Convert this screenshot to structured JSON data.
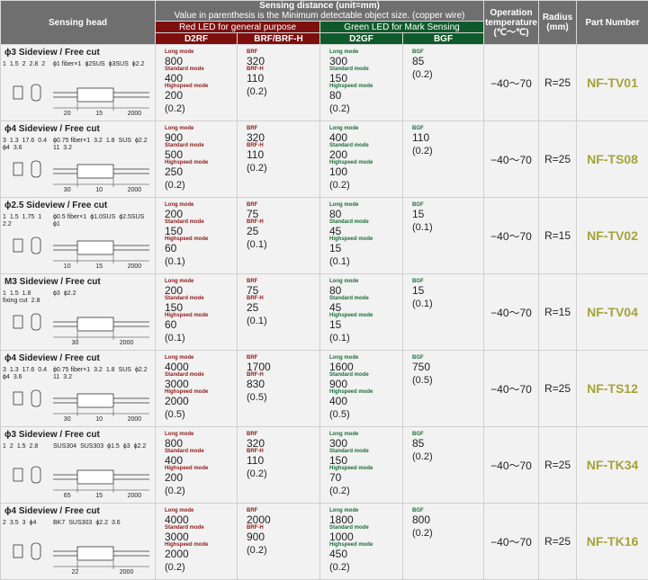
{
  "header": {
    "sensing_head": "Sensing head",
    "sensing_distance": "Sensing distance (unit=mm)",
    "sensing_note": "Value in parenthesis is the Minimum detectable object size. (copper wire)",
    "red_led": "Red LED for general purpose",
    "green_led": "Green LED for Mark Sensing",
    "cols": [
      "D2RF",
      "BRF/BRF-H",
      "D2GF",
      "BGF"
    ],
    "op_temp": "Operation temperature (℃～℃)",
    "radius": "Radius (mm)",
    "part_number": "Part Number"
  },
  "labels": {
    "long": "Long mode",
    "standard": "Standard mode",
    "highspeed": "Highspeed mode",
    "brf": "BRF",
    "brfh": "BRF-H",
    "bgf": "BGF"
  },
  "colors": {
    "red_header": "#7d0f0f",
    "green_header": "#0f5a2b",
    "part_number": "#a3a339"
  },
  "rows": [
    {
      "title": "ϕ3 Sideview / Free cut",
      "end_view": [
        "1",
        "1.5",
        "2",
        "2.8",
        "2"
      ],
      "callouts": [
        "ϕ1 fiber×1",
        "ϕ2SUS",
        "ϕ3SUS",
        "ϕ2.2"
      ],
      "lengths": [
        "20",
        "15",
        "2000"
      ],
      "d2rf": [
        "800",
        "400",
        "200",
        "(0.2)"
      ],
      "brf": [
        "320",
        "110",
        "(0.2)"
      ],
      "d2gf": [
        "300",
        "150",
        "80",
        "(0.2)"
      ],
      "bgf": [
        "85",
        "(0.2)"
      ],
      "temp": "−40～70",
      "radius": "R=25",
      "part": "NF-TV01"
    },
    {
      "title": "ϕ4 Sideview / Free cut",
      "end_view": [
        "3",
        "1.3",
        "17.6",
        "0.4",
        "ϕ4",
        "3.6"
      ],
      "callouts": [
        "ϕ0.75 fiber×1",
        "3.2",
        "1.8",
        "SUS",
        "ϕ2.2",
        "11",
        "3.2"
      ],
      "lengths": [
        "30",
        "10",
        "2000"
      ],
      "d2rf": [
        "900",
        "500",
        "250",
        "(0.2)"
      ],
      "brf": [
        "320",
        "110",
        "(0.2)"
      ],
      "d2gf": [
        "400",
        "200",
        "100",
        "(0.2)"
      ],
      "bgf": [
        "110",
        "(0.2)"
      ],
      "temp": "−40～70",
      "radius": "R=25",
      "part": "NF-TS08"
    },
    {
      "title": "ϕ2.5 Sideview / Free cut",
      "end_view": [
        "1",
        "1.5",
        "1.75",
        "1",
        "2.2"
      ],
      "callouts": [
        "ϕ0.5 fiber×1",
        "ϕ1.0SUS",
        "ϕ2.5SUS",
        "ϕ1"
      ],
      "lengths": [
        "10",
        "15",
        "2000"
      ],
      "d2rf": [
        "200",
        "150",
        "60",
        "(0.1)"
      ],
      "brf": [
        "75",
        "25",
        "(0.1)"
      ],
      "d2gf": [
        "80",
        "45",
        "15",
        "(0.1)"
      ],
      "bgf": [
        "15",
        "(0.1)"
      ],
      "temp": "−40～70",
      "radius": "R=15",
      "part": "NF-TV02"
    },
    {
      "title": "M3 Sideview / Free cut",
      "end_view": [
        "1",
        "1.5",
        "1.8",
        "fixing cut",
        "2.8"
      ],
      "callouts": [
        "ϕ3",
        "ϕ2.2"
      ],
      "lengths": [
        "30",
        "2000"
      ],
      "d2rf": [
        "200",
        "150",
        "60",
        "(0.1)"
      ],
      "brf": [
        "75",
        "25",
        "(0.1)"
      ],
      "d2gf": [
        "80",
        "45",
        "15",
        "(0.1)"
      ],
      "bgf": [
        "15",
        "(0.1)"
      ],
      "temp": "−40～70",
      "radius": "R=15",
      "part": "NF-TV04"
    },
    {
      "title": "ϕ4 Sideview / Free cut",
      "end_view": [
        "3",
        "1.3",
        "17.6",
        "0.4",
        "ϕ4",
        "3.6"
      ],
      "callouts": [
        "ϕ0.75 fiber×1",
        "3.2",
        "1.8",
        "SUS",
        "ϕ2.2",
        "11",
        "3.2"
      ],
      "lengths": [
        "30",
        "10",
        "2000"
      ],
      "d2rf": [
        "4000",
        "3000",
        "2000",
        "(0.5)"
      ],
      "brf": [
        "1700",
        "830",
        "(0.5)"
      ],
      "d2gf": [
        "1600",
        "900",
        "400",
        "(0.5)"
      ],
      "bgf": [
        "750",
        "(0.5)"
      ],
      "temp": "−40～70",
      "radius": "R=25",
      "part": "NF-TS12"
    },
    {
      "title": "ϕ3 Sideview / Free cut",
      "end_view": [
        "1",
        "2",
        "1.5",
        "2.8"
      ],
      "callouts": [
        "SUS304",
        "SUS303",
        "ϕ1.5",
        "ϕ3",
        "ϕ2.2"
      ],
      "lengths": [
        "65",
        "15",
        "2000"
      ],
      "d2rf": [
        "800",
        "400",
        "200",
        "(0.2)"
      ],
      "brf": [
        "320",
        "110",
        "(0.2)"
      ],
      "d2gf": [
        "300",
        "150",
        "70",
        "(0.2)"
      ],
      "bgf": [
        "85",
        "(0.2)"
      ],
      "temp": "−40～70",
      "radius": "R=25",
      "part": "NF-TK34"
    },
    {
      "title": "ϕ4 Sideview / Free cut",
      "end_view": [
        "2",
        "3.5",
        "3",
        "ϕ4"
      ],
      "callouts": [
        "BK7",
        "SUS303",
        "ϕ2.2",
        "3.6"
      ],
      "lengths": [
        "22",
        "2000"
      ],
      "d2rf": [
        "4000",
        "3000",
        "2000",
        "(0.2)"
      ],
      "brf": [
        "2000",
        "900",
        "(0.2)"
      ],
      "d2gf": [
        "1800",
        "1000",
        "450",
        "(0.2)"
      ],
      "bgf": [
        "800",
        "(0.2)"
      ],
      "temp": "−40～70",
      "radius": "R=25",
      "part": "NF-TK16"
    }
  ]
}
